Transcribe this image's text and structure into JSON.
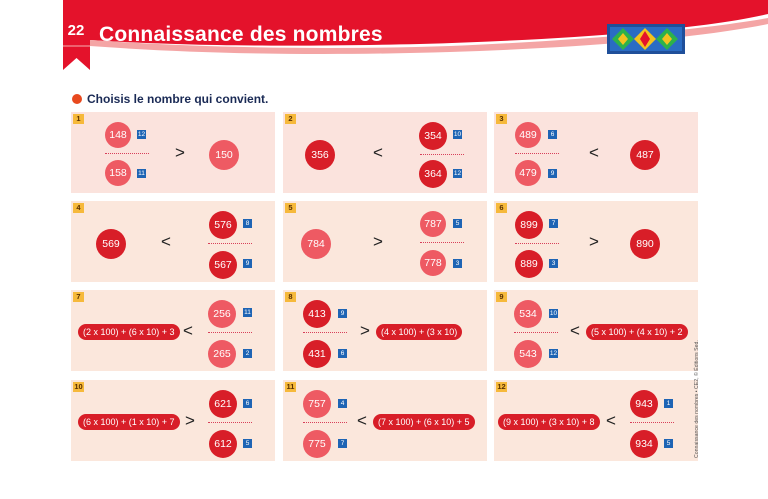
{
  "header": {
    "page_number": "22",
    "title": "Connaissance des nombres"
  },
  "instruction": "Choisis le nombre qui convient.",
  "side_note": "Connaissance des nombres  •  CE2, © Éditions Sed.",
  "exercises": [
    {
      "num": "1",
      "sign": ">",
      "top": "148",
      "top_badge": "12",
      "bottom": "158",
      "bottom_badge": "11",
      "right": "150"
    },
    {
      "num": "2",
      "left": "356",
      "sign": "<",
      "top": "354",
      "top_badge": "10",
      "bottom": "364",
      "bottom_badge": "12"
    },
    {
      "num": "3",
      "top": "489",
      "top_badge": "6",
      "bottom": "479",
      "bottom_badge": "9",
      "sign": "<",
      "right": "487"
    },
    {
      "num": "4",
      "left": "569",
      "sign": "<",
      "top": "576",
      "top_badge": "8",
      "bottom": "567",
      "bottom_badge": "9"
    },
    {
      "num": "5",
      "left": "784",
      "sign": ">",
      "top": "787",
      "top_badge": "5",
      "bottom": "778",
      "bottom_badge": "3"
    },
    {
      "num": "6",
      "top": "899",
      "top_badge": "7",
      "bottom": "889",
      "bottom_badge": "3",
      "sign": ">",
      "right": "890"
    },
    {
      "num": "7",
      "expr": "(2 x 100) + (6 x 10) + 3",
      "sign": "<",
      "top": "256",
      "top_badge": "11",
      "bottom": "265",
      "bottom_badge": "2"
    },
    {
      "num": "8",
      "top": "413",
      "top_badge": "9",
      "bottom": "431",
      "bottom_badge": "6",
      "sign": ">",
      "expr": "(4 x 100) + (3 x 10)"
    },
    {
      "num": "9",
      "top": "534",
      "top_badge": "10",
      "bottom": "543",
      "bottom_badge": "12",
      "sign": "<",
      "expr": "(5 x 100) + (4 x 10) + 2"
    },
    {
      "num": "10",
      "expr": "(6 x 100) + (1 x 10) + 7",
      "sign": ">",
      "top": "621",
      "top_badge": "6",
      "bottom": "612",
      "bottom_badge": "5"
    },
    {
      "num": "11",
      "top": "757",
      "top_badge": "4",
      "bottom": "775",
      "bottom_badge": "7",
      "sign": "<",
      "expr": "(7 x 100) + (6 x 10) + 5"
    },
    {
      "num": "12",
      "expr": "(9 x 100) + (3 x 10) + 8",
      "sign": "<",
      "top": "943",
      "top_badge": "1",
      "bottom": "934",
      "bottom_badge": "5"
    }
  ]
}
